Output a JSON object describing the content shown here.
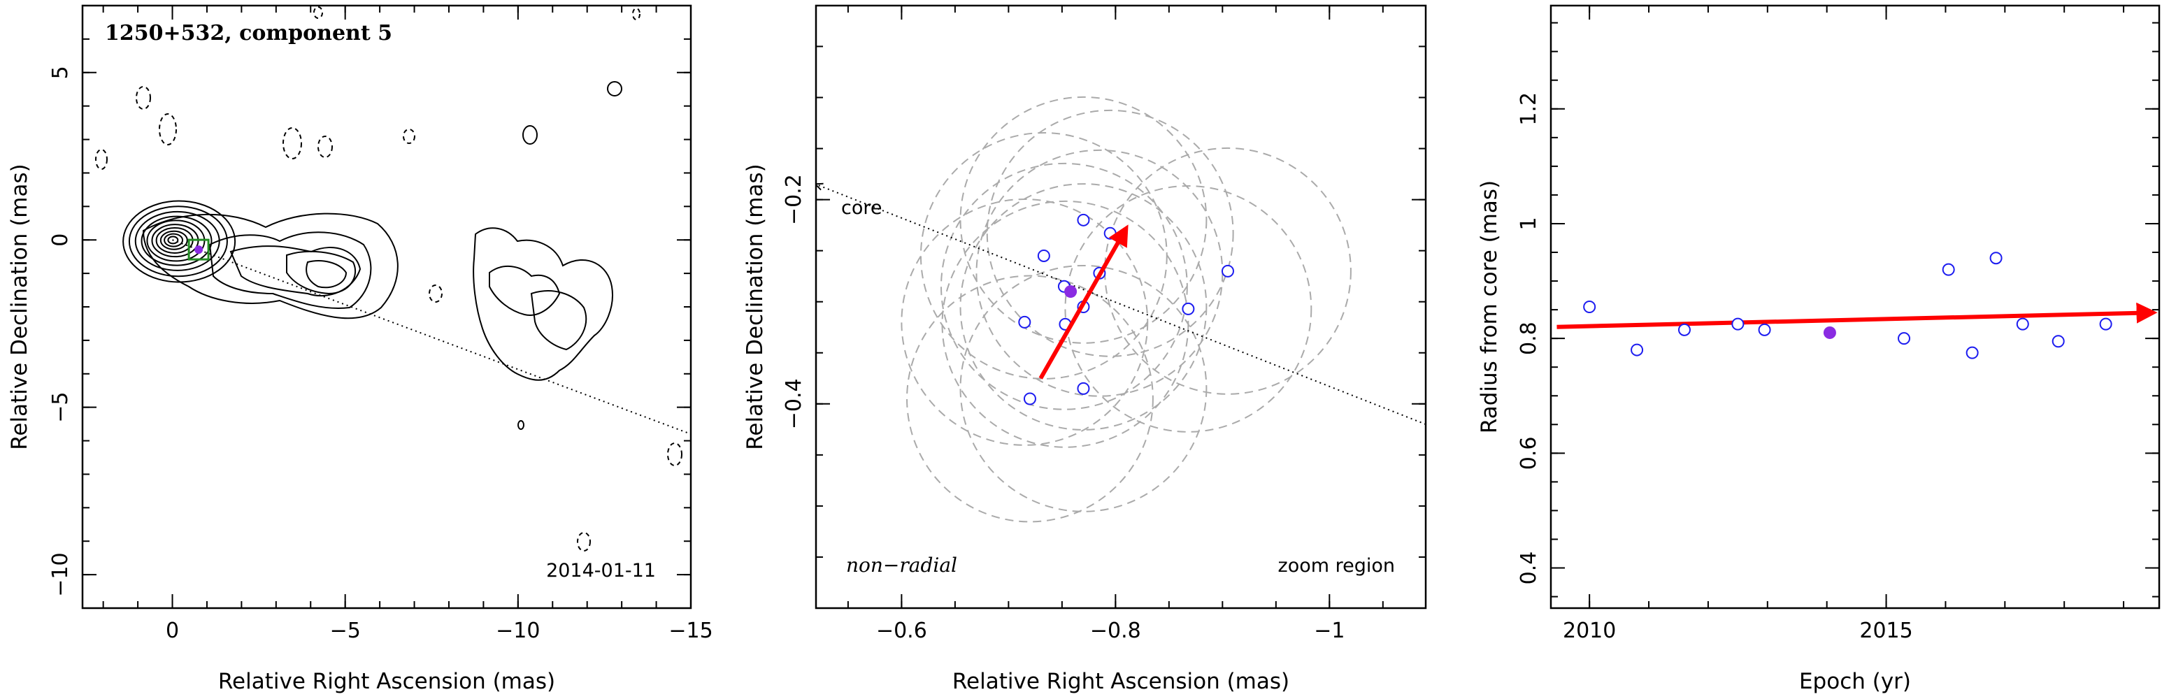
{
  "chart_data": [
    {
      "type": "scatter",
      "title": "1250+532, component 5",
      "date_label": "2014-01-11",
      "xlabel": "Relative Right Ascension (mas)",
      "ylabel": "Relative Declination (mas)",
      "xlim": [
        2.6,
        -15
      ],
      "ylim": [
        -11,
        7
      ],
      "xticks": [
        0,
        -5,
        -10,
        -15
      ],
      "yticks": [
        5,
        0,
        -5,
        -10
      ],
      "xticklabels": [
        "0",
        "−5",
        "−10",
        "−15"
      ],
      "yticklabels": [
        "5",
        "0",
        "−5",
        "−10"
      ],
      "contours": "radio source contour map (solid positive, dashed negative)",
      "component_marker": {
        "x": -0.76,
        "y": -0.29
      },
      "direction_line": {
        "from": [
          0,
          0
        ],
        "to": [
          -15,
          -5.8
        ]
      }
    },
    {
      "type": "scatter",
      "xlabel": "Relative Right Ascension (mas)",
      "ylabel": "Relative Declination (mas)",
      "xlim": [
        -0.52,
        -1.09
      ],
      "ylim": [
        -0.6,
        -0.01
      ],
      "xticks": [
        -0.6,
        -0.8,
        -1
      ],
      "yticks": [
        -0.2,
        -0.4
      ],
      "xticklabels": [
        "−0.6",
        "−0.8",
        "−1"
      ],
      "yticklabels": [
        "−0.2",
        "−0.4"
      ],
      "core_label": "core",
      "motion_label": "non−radial",
      "region_label": "zoom region",
      "points": [
        {
          "x": -0.77,
          "y": -0.22
        },
        {
          "x": -0.795,
          "y": -0.233
        },
        {
          "x": -0.733,
          "y": -0.255
        },
        {
          "x": -0.905,
          "y": -0.27
        },
        {
          "x": -0.785,
          "y": -0.272
        },
        {
          "x": -0.752,
          "y": -0.285
        },
        {
          "x": -0.77,
          "y": -0.305
        },
        {
          "x": -0.868,
          "y": -0.307
        },
        {
          "x": -0.715,
          "y": -0.32
        },
        {
          "x": -0.753,
          "y": -0.322
        },
        {
          "x": -0.77,
          "y": -0.385
        },
        {
          "x": -0.72,
          "y": -0.395
        }
      ],
      "highlight_point": {
        "x": -0.758,
        "y": -0.29
      },
      "uncertainty_circle_radius": 0.115,
      "velocity_arrow": {
        "from": [
          -0.73,
          -0.375
        ],
        "to": [
          -0.81,
          -0.228
        ]
      },
      "core_direction_line": {
        "from": [
          -1.09,
          -0.42
        ],
        "to": [
          -0.52,
          -0.185
        ]
      }
    },
    {
      "type": "scatter",
      "xlabel": "Epoch (yr)",
      "ylabel": "Radius from core (mas)",
      "xlim": [
        2009.35,
        2019.6
      ],
      "ylim": [
        0.33,
        1.38
      ],
      "xticks": [
        2010,
        2015
      ],
      "yticks": [
        0.4,
        0.6,
        0.8,
        1,
        1.2
      ],
      "xticklabels": [
        "2010",
        "2015"
      ],
      "yticklabels": [
        "0.4",
        "0.6",
        "0.8",
        "1",
        "1.2"
      ],
      "points": [
        {
          "x": 2010.0,
          "y": 0.855
        },
        {
          "x": 2010.8,
          "y": 0.78
        },
        {
          "x": 2011.6,
          "y": 0.815
        },
        {
          "x": 2012.5,
          "y": 0.825
        },
        {
          "x": 2012.95,
          "y": 0.815
        },
        {
          "x": 2015.3,
          "y": 0.8
        },
        {
          "x": 2016.05,
          "y": 0.92
        },
        {
          "x": 2016.45,
          "y": 0.775
        },
        {
          "x": 2016.85,
          "y": 0.94
        },
        {
          "x": 2017.3,
          "y": 0.825
        },
        {
          "x": 2017.9,
          "y": 0.795
        },
        {
          "x": 2018.7,
          "y": 0.825
        }
      ],
      "highlight_point": {
        "x": 2014.05,
        "y": 0.81
      },
      "trend_arrow": {
        "from": [
          2009.45,
          0.82
        ],
        "to": [
          2019.5,
          0.845
        ]
      }
    }
  ],
  "colors": {
    "point": "#1c1cf0",
    "highlight": "#8a2be2",
    "arrow": "#ff0000",
    "circle": "#aaaaaa",
    "component_box": "#228b22"
  }
}
